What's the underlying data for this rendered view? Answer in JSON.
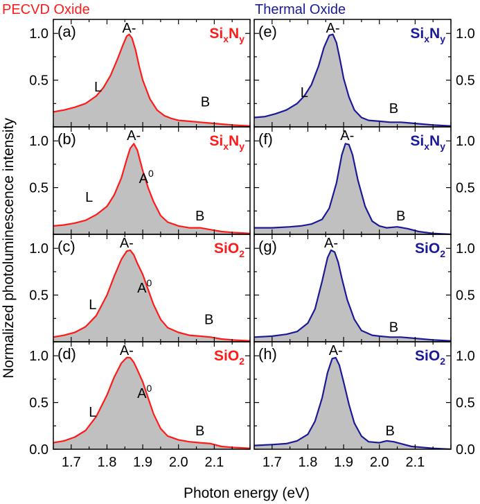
{
  "figure": {
    "left_column_title": "PECVD Oxide",
    "right_column_title": "Thermal Oxide",
    "ylabel": "Normalized photoluminescence intensity",
    "xlabel": "Photon energy (eV)",
    "colors": {
      "pecvd": "#ff1a1a",
      "thermal": "#1a1a99",
      "fill": "#c0c0c0",
      "axis": "#000000"
    }
  },
  "chart_data": {
    "type": "area",
    "xlim": [
      1.65,
      2.2
    ],
    "ylim": [
      0,
      1.15
    ],
    "xticks": [
      1.7,
      1.8,
      1.9,
      2.0,
      2.1
    ],
    "xtick_labels": [
      "1.7",
      "1.8",
      "1.9",
      "2.0",
      "2.1"
    ],
    "yticks": [
      0.0,
      0.5,
      1.0
    ],
    "ytick_labels": [
      "0.0",
      "0.5",
      "1.0"
    ],
    "panels": [
      {
        "label": "(a)",
        "column": "PECVD Oxide",
        "row": 0,
        "color": "#ff1a1a",
        "material": {
          "base": "Si",
          "subs": [
            "x",
            "y"
          ],
          "mid": "N"
        },
        "x": [
          1.65,
          1.68,
          1.71,
          1.74,
          1.77,
          1.79,
          1.81,
          1.83,
          1.845,
          1.855,
          1.862,
          1.87,
          1.88,
          1.89,
          1.9,
          1.92,
          1.94,
          1.96,
          1.98,
          2.0,
          2.03,
          2.06,
          2.09,
          2.12,
          2.15,
          2.2
        ],
        "y": [
          0.16,
          0.18,
          0.21,
          0.25,
          0.33,
          0.42,
          0.55,
          0.73,
          0.88,
          0.97,
          0.99,
          0.95,
          0.82,
          0.65,
          0.5,
          0.3,
          0.18,
          0.12,
          0.09,
          0.07,
          0.06,
          0.05,
          0.04,
          0.03,
          0.02,
          0.01
        ],
        "annotations": [
          {
            "text": "A-",
            "x": 1.862,
            "y": 1.06
          },
          {
            "text": "L",
            "x": 1.775,
            "y": 0.43
          },
          {
            "text": "B",
            "x": 2.075,
            "y": 0.27
          }
        ]
      },
      {
        "label": "(b)",
        "column": "PECVD Oxide",
        "row": 1,
        "color": "#ff1a1a",
        "material": {
          "base": "Si",
          "subs": [
            "x",
            "y"
          ],
          "mid": "N"
        },
        "x": [
          1.65,
          1.68,
          1.71,
          1.74,
          1.77,
          1.8,
          1.82,
          1.84,
          1.855,
          1.865,
          1.875,
          1.885,
          1.9,
          1.915,
          1.93,
          1.95,
          1.97,
          2.0,
          2.03,
          2.06,
          2.09,
          2.12,
          2.15,
          2.2
        ],
        "y": [
          0.09,
          0.1,
          0.12,
          0.15,
          0.21,
          0.3,
          0.42,
          0.6,
          0.8,
          0.92,
          0.97,
          0.9,
          0.68,
          0.5,
          0.35,
          0.2,
          0.13,
          0.09,
          0.07,
          0.07,
          0.05,
          0.03,
          0.02,
          0.01
        ],
        "annotations": [
          {
            "text": "A-",
            "x": 1.875,
            "y": 1.06
          },
          {
            "text": "L",
            "x": 1.75,
            "y": 0.4
          },
          {
            "text": "A0",
            "x": 1.91,
            "y": 0.6,
            "sup": true
          },
          {
            "text": "B",
            "x": 2.06,
            "y": 0.2
          }
        ]
      },
      {
        "label": "(c)",
        "column": "PECVD Oxide",
        "row": 2,
        "color": "#ff1a1a",
        "material": {
          "base": "Si",
          "mid": "O",
          "subs": [
            "",
            "2"
          ]
        },
        "x": [
          1.65,
          1.68,
          1.71,
          1.74,
          1.77,
          1.8,
          1.82,
          1.84,
          1.855,
          1.865,
          1.875,
          1.885,
          1.9,
          1.915,
          1.93,
          1.95,
          1.97,
          2.0,
          2.03,
          2.06,
          2.09,
          2.12,
          2.15,
          2.2
        ],
        "y": [
          0.05,
          0.07,
          0.1,
          0.16,
          0.28,
          0.5,
          0.7,
          0.88,
          0.97,
          0.98,
          0.93,
          0.84,
          0.72,
          0.56,
          0.4,
          0.24,
          0.15,
          0.1,
          0.07,
          0.06,
          0.05,
          0.03,
          0.02,
          0.01
        ],
        "annotations": [
          {
            "text": "A-",
            "x": 1.855,
            "y": 1.06
          },
          {
            "text": "L",
            "x": 1.76,
            "y": 0.4
          },
          {
            "text": "A0",
            "x": 1.905,
            "y": 0.58,
            "sup": true
          },
          {
            "text": "B",
            "x": 2.085,
            "y": 0.24
          }
        ]
      },
      {
        "label": "(d)",
        "column": "PECVD Oxide",
        "row": 3,
        "color": "#ff1a1a",
        "material": {
          "base": "Si",
          "mid": "O",
          "subs": [
            "",
            "2"
          ]
        },
        "x": [
          1.65,
          1.68,
          1.71,
          1.74,
          1.77,
          1.8,
          1.82,
          1.84,
          1.855,
          1.865,
          1.875,
          1.885,
          1.9,
          1.915,
          1.93,
          1.95,
          1.97,
          2.0,
          2.03,
          2.06,
          2.09,
          2.12,
          2.15,
          2.2
        ],
        "y": [
          0.07,
          0.09,
          0.13,
          0.2,
          0.35,
          0.58,
          0.77,
          0.92,
          0.98,
          0.98,
          0.93,
          0.85,
          0.72,
          0.55,
          0.38,
          0.22,
          0.14,
          0.1,
          0.08,
          0.07,
          0.06,
          0.03,
          0.02,
          0.01
        ],
        "annotations": [
          {
            "text": "A-",
            "x": 1.855,
            "y": 1.06
          },
          {
            "text": "L",
            "x": 1.76,
            "y": 0.4
          },
          {
            "text": "A0",
            "x": 1.905,
            "y": 0.6,
            "sup": true
          },
          {
            "text": "B",
            "x": 2.06,
            "y": 0.2
          }
        ]
      },
      {
        "label": "(e)",
        "column": "Thermal Oxide",
        "row": 0,
        "color": "#1a1a99",
        "material": {
          "base": "Si",
          "subs": [
            "x",
            "y"
          ],
          "mid": "N"
        },
        "x": [
          1.65,
          1.68,
          1.71,
          1.74,
          1.77,
          1.79,
          1.81,
          1.83,
          1.845,
          1.86,
          1.87,
          1.88,
          1.89,
          1.9,
          1.915,
          1.93,
          1.95,
          1.97,
          2.0,
          2.03,
          2.06,
          2.09,
          2.12,
          2.15,
          2.2
        ],
        "y": [
          0.1,
          0.11,
          0.14,
          0.18,
          0.25,
          0.33,
          0.45,
          0.65,
          0.85,
          0.98,
          0.99,
          0.9,
          0.72,
          0.52,
          0.32,
          0.18,
          0.1,
          0.07,
          0.06,
          0.05,
          0.05,
          0.04,
          0.03,
          0.02,
          0.01
        ],
        "annotations": [
          {
            "text": "A-",
            "x": 1.87,
            "y": 1.06
          },
          {
            "text": "L",
            "x": 1.79,
            "y": 0.37
          },
          {
            "text": "B",
            "x": 2.04,
            "y": 0.2
          }
        ]
      },
      {
        "label": "(f)",
        "column": "Thermal Oxide",
        "row": 1,
        "color": "#1a1a99",
        "material": {
          "base": "Si",
          "subs": [
            "x",
            "y"
          ],
          "mid": "N"
        },
        "x": [
          1.65,
          1.7,
          1.75,
          1.78,
          1.81,
          1.84,
          1.86,
          1.88,
          1.895,
          1.905,
          1.915,
          1.925,
          1.94,
          1.96,
          1.98,
          2.0,
          2.02,
          2.05,
          2.08,
          2.11,
          2.15,
          2.2
        ],
        "y": [
          0.07,
          0.07,
          0.08,
          0.09,
          0.11,
          0.16,
          0.28,
          0.55,
          0.85,
          0.97,
          0.96,
          0.85,
          0.58,
          0.3,
          0.14,
          0.09,
          0.07,
          0.08,
          0.06,
          0.03,
          0.01,
          0.0
        ],
        "annotations": [
          {
            "text": "A-",
            "x": 1.91,
            "y": 1.06
          },
          {
            "text": "B",
            "x": 2.06,
            "y": 0.2
          }
        ]
      },
      {
        "label": "(g)",
        "column": "Thermal Oxide",
        "row": 2,
        "color": "#1a1a99",
        "material": {
          "base": "Si",
          "mid": "O",
          "subs": [
            "",
            "2"
          ]
        },
        "x": [
          1.65,
          1.7,
          1.74,
          1.77,
          1.8,
          1.82,
          1.84,
          1.855,
          1.865,
          1.875,
          1.885,
          1.895,
          1.91,
          1.93,
          1.95,
          1.98,
          2.0,
          2.03,
          2.06,
          2.09,
          2.12,
          2.15,
          2.2
        ],
        "y": [
          0.05,
          0.06,
          0.08,
          0.11,
          0.2,
          0.35,
          0.65,
          0.9,
          0.98,
          0.96,
          0.85,
          0.68,
          0.45,
          0.24,
          0.12,
          0.07,
          0.06,
          0.05,
          0.05,
          0.04,
          0.03,
          0.02,
          0.01
        ],
        "annotations": [
          {
            "text": "A-",
            "x": 1.865,
            "y": 1.06
          },
          {
            "text": "B",
            "x": 2.04,
            "y": 0.16
          }
        ]
      },
      {
        "label": "(h)",
        "column": "Thermal Oxide",
        "row": 3,
        "color": "#1a1a99",
        "material": {
          "base": "Si",
          "mid": "O",
          "subs": [
            "",
            "2"
          ]
        },
        "x": [
          1.65,
          1.7,
          1.74,
          1.77,
          1.8,
          1.82,
          1.84,
          1.855,
          1.868,
          1.878,
          1.888,
          1.9,
          1.915,
          1.93,
          1.95,
          1.97,
          2.0,
          2.02,
          2.04,
          2.06,
          2.09,
          2.12,
          2.15,
          2.2
        ],
        "y": [
          0.04,
          0.05,
          0.06,
          0.09,
          0.16,
          0.3,
          0.55,
          0.82,
          0.97,
          0.98,
          0.9,
          0.72,
          0.48,
          0.28,
          0.14,
          0.08,
          0.07,
          0.09,
          0.08,
          0.06,
          0.03,
          0.02,
          0.01,
          0.0
        ],
        "annotations": [
          {
            "text": "A-",
            "x": 1.878,
            "y": 1.06
          },
          {
            "text": "B",
            "x": 2.03,
            "y": 0.2
          }
        ]
      }
    ]
  }
}
